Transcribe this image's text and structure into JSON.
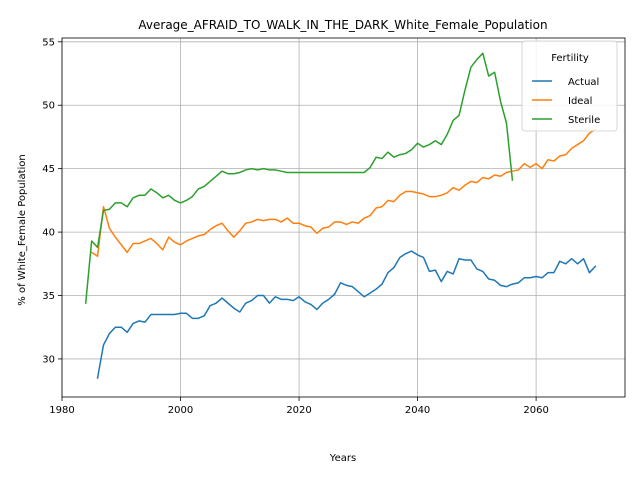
{
  "chart_data": {
    "type": "line",
    "title": "Average_AFRAID_TO_WALK_IN_THE_DARK_White_Female_Population",
    "xlabel": "Years",
    "ylabel": "% of White_Female Population",
    "xlim": [
      1980,
      2075
    ],
    "ylim": [
      27,
      55.3
    ],
    "xticks": [
      1980,
      2000,
      2020,
      2040,
      2060
    ],
    "yticks": [
      30,
      35,
      40,
      45,
      50,
      55
    ],
    "grid": true,
    "legend": {
      "title": "Fertility",
      "placement": "top-right"
    },
    "series": [
      {
        "name": "Actual",
        "color": "#1f77b4",
        "x": [
          1986,
          1987,
          1988,
          1989,
          1990,
          1991,
          1992,
          1993,
          1994,
          1995,
          1996,
          1997,
          1998,
          1999,
          2000,
          2001,
          2002,
          2003,
          2004,
          2005,
          2006,
          2007,
          2008,
          2009,
          2010,
          2011,
          2012,
          2013,
          2014,
          2015,
          2016,
          2017,
          2018,
          2019,
          2020,
          2021,
          2022,
          2023,
          2024,
          2025,
          2026,
          2027,
          2028,
          2029,
          2030,
          2031,
          2032,
          2033,
          2034,
          2035,
          2036,
          2037,
          2038,
          2039,
          2040,
          2041,
          2042,
          2043,
          2044,
          2045,
          2046,
          2047,
          2048,
          2049,
          2050,
          2051,
          2052,
          2053,
          2054,
          2055,
          2056,
          2057,
          2058,
          2059,
          2060,
          2061,
          2062,
          2063,
          2064,
          2065,
          2066,
          2067,
          2068,
          2069,
          2070
        ],
        "values": [
          28.5,
          31.1,
          32.0,
          32.5,
          32.5,
          32.1,
          32.8,
          33.0,
          32.9,
          33.5,
          33.5,
          33.5,
          33.5,
          33.5,
          33.6,
          33.6,
          33.2,
          33.2,
          33.4,
          34.2,
          34.4,
          34.8,
          34.4,
          34.0,
          33.7,
          34.4,
          34.6,
          35.0,
          35.0,
          34.4,
          34.9,
          34.7,
          34.7,
          34.6,
          34.9,
          34.5,
          34.3,
          33.9,
          34.4,
          34.7,
          35.1,
          36.0,
          35.8,
          35.7,
          35.3,
          34.9,
          35.2,
          35.5,
          35.9,
          36.8,
          37.2,
          38.0,
          38.3,
          38.5,
          38.2,
          38.0,
          36.9,
          37.0,
          36.1,
          36.9,
          36.7,
          37.9,
          37.8,
          37.8,
          37.1,
          36.9,
          36.3,
          36.2,
          35.8,
          35.7,
          35.9,
          36.0,
          36.4,
          36.4,
          36.5,
          36.4,
          36.8,
          36.8,
          37.7,
          37.5,
          37.9,
          37.5,
          37.9,
          36.8,
          37.3
        ]
      },
      {
        "name": "Ideal",
        "color": "#ff7f0e",
        "x": [
          1985,
          1986,
          1987,
          1988,
          1989,
          1990,
          1991,
          1992,
          1993,
          1994,
          1995,
          1996,
          1997,
          1998,
          1999,
          2000,
          2001,
          2002,
          2003,
          2004,
          2005,
          2006,
          2007,
          2008,
          2009,
          2010,
          2011,
          2012,
          2013,
          2014,
          2015,
          2016,
          2017,
          2018,
          2019,
          2020,
          2021,
          2022,
          2023,
          2024,
          2025,
          2026,
          2027,
          2028,
          2029,
          2030,
          2031,
          2032,
          2033,
          2034,
          2035,
          2036,
          2037,
          2038,
          2039,
          2040,
          2041,
          2042,
          2043,
          2044,
          2045,
          2046,
          2047,
          2048,
          2049,
          2050,
          2051,
          2052,
          2053,
          2054,
          2055,
          2056,
          2057,
          2058,
          2059,
          2060,
          2061,
          2062,
          2063,
          2064,
          2065,
          2066,
          2067,
          2068,
          2069,
          2070
        ],
        "values": [
          38.4,
          38.1,
          42.0,
          40.3,
          39.6,
          39.0,
          38.4,
          39.1,
          39.1,
          39.3,
          39.5,
          39.1,
          38.6,
          39.6,
          39.2,
          39.0,
          39.3,
          39.5,
          39.7,
          39.8,
          40.2,
          40.5,
          40.7,
          40.1,
          39.6,
          40.1,
          40.7,
          40.8,
          41.0,
          40.9,
          41.0,
          41.0,
          40.8,
          41.1,
          40.7,
          40.7,
          40.5,
          40.4,
          39.9,
          40.3,
          40.4,
          40.8,
          40.8,
          40.6,
          40.8,
          40.7,
          41.1,
          41.3,
          41.9,
          42.0,
          42.5,
          42.4,
          42.9,
          43.2,
          43.2,
          43.1,
          43.0,
          42.8,
          42.8,
          42.9,
          43.1,
          43.5,
          43.3,
          43.7,
          44.0,
          43.9,
          44.3,
          44.2,
          44.5,
          44.4,
          44.7,
          44.8,
          44.9,
          45.4,
          45.1,
          45.4,
          45.0,
          45.7,
          45.6,
          46.0,
          46.1,
          46.6,
          46.9,
          47.2,
          47.8,
          48.1
        ]
      },
      {
        "name": "Sterile",
        "color": "#2ca02c",
        "x": [
          1984,
          1985,
          1986,
          1987,
          1988,
          1989,
          1990,
          1991,
          1992,
          1993,
          1994,
          1995,
          1996,
          1997,
          1998,
          1999,
          2000,
          2001,
          2002,
          2003,
          2004,
          2005,
          2006,
          2007,
          2008,
          2009,
          2010,
          2011,
          2012,
          2013,
          2014,
          2015,
          2016,
          2017,
          2018,
          2019,
          2020,
          2021,
          2022,
          2023,
          2024,
          2025,
          2026,
          2027,
          2028,
          2029,
          2030,
          2031,
          2032,
          2033,
          2034,
          2035,
          2036,
          2037,
          2038,
          2039,
          2040,
          2041,
          2042,
          2043,
          2044,
          2045,
          2046,
          2047,
          2048,
          2049,
          2050,
          2051,
          2052,
          2053,
          2054,
          2055,
          2056
        ],
        "values": [
          34.4,
          39.3,
          38.8,
          41.7,
          41.8,
          42.3,
          42.3,
          42.0,
          42.7,
          42.9,
          42.9,
          43.4,
          43.1,
          42.7,
          42.9,
          42.5,
          42.3,
          42.5,
          42.8,
          43.4,
          43.6,
          44.0,
          44.4,
          44.8,
          44.6,
          44.6,
          44.7,
          44.9,
          45.0,
          44.9,
          45.0,
          44.9,
          44.9,
          44.8,
          44.7,
          44.7,
          44.7,
          44.7,
          44.7,
          44.7,
          44.7,
          44.7,
          44.7,
          44.7,
          44.7,
          44.7,
          44.7,
          44.7,
          45.1,
          45.9,
          45.8,
          46.3,
          45.9,
          46.1,
          46.2,
          46.5,
          47.0,
          46.7,
          46.9,
          47.2,
          46.9,
          47.7,
          48.8,
          49.2,
          51.2,
          53.0,
          53.6,
          54.1,
          52.3,
          52.6,
          50.3,
          48.6,
          44.1
        ]
      }
    ]
  }
}
